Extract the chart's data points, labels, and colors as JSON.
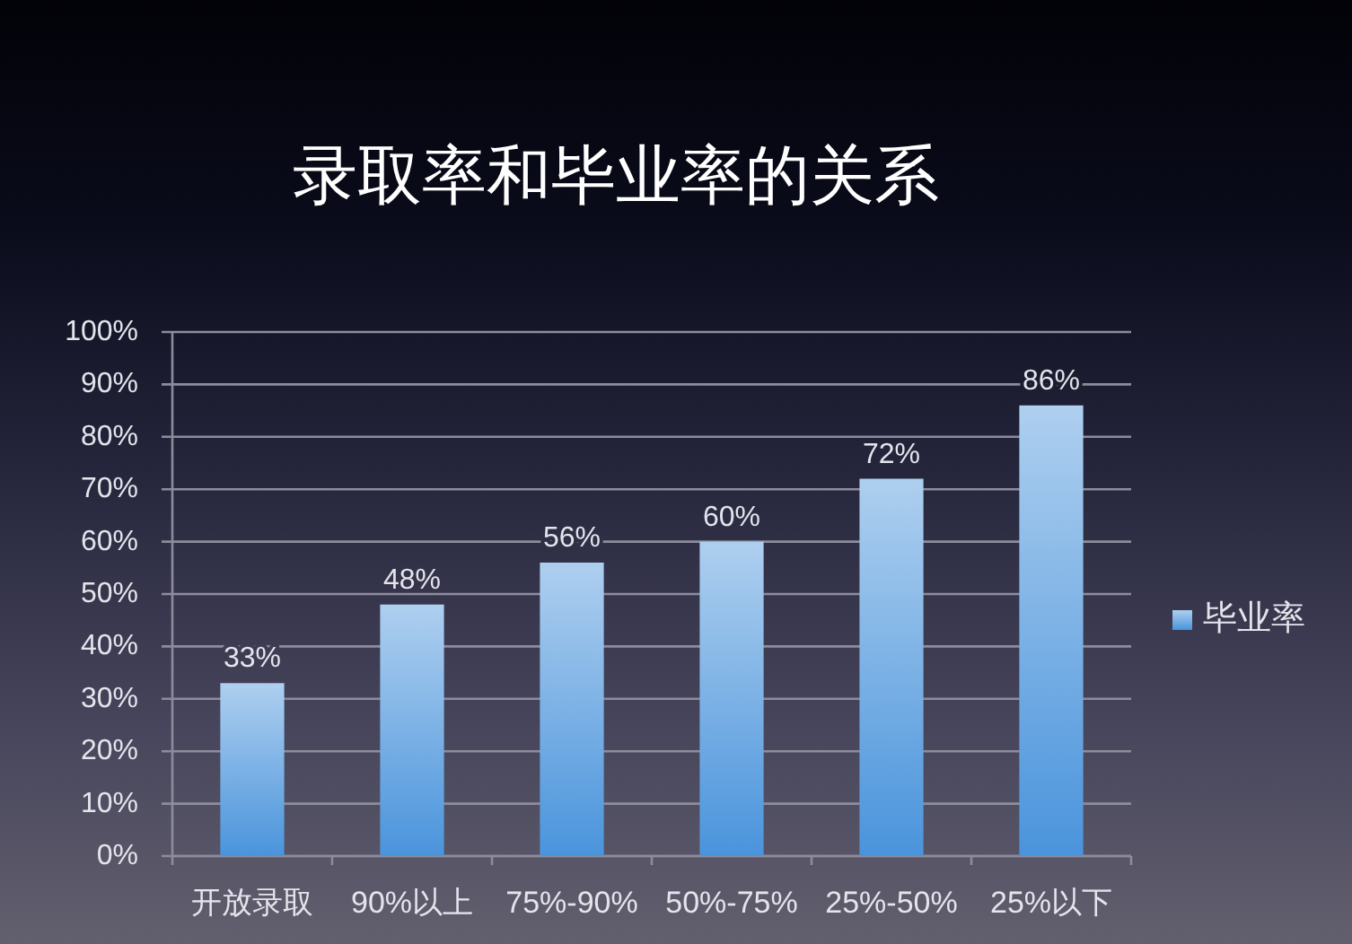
{
  "chart_data": {
    "type": "bar",
    "title": "录取率和毕业率的关系",
    "categories": [
      "开放录取",
      "90%以上",
      "75%-90%",
      "50%-75%",
      "25%-50%",
      "25%以下"
    ],
    "series": [
      {
        "name": "毕业率",
        "color": "#4a94dc",
        "values": [
          33,
          48,
          56,
          60,
          72,
          86
        ],
        "value_labels": [
          "33%",
          "48%",
          "56%",
          "60%",
          "72%",
          "86%"
        ]
      }
    ],
    "ylim": [
      0,
      100
    ],
    "yticks": [
      {
        "value": 0,
        "label": "0%"
      },
      {
        "value": 10,
        "label": "10%"
      },
      {
        "value": 20,
        "label": "20%"
      },
      {
        "value": 30,
        "label": "30%"
      },
      {
        "value": 40,
        "label": "40%"
      },
      {
        "value": 50,
        "label": "50%"
      },
      {
        "value": 60,
        "label": "60%"
      },
      {
        "value": 70,
        "label": "70%"
      },
      {
        "value": 80,
        "label": "80%"
      },
      {
        "value": 90,
        "label": "90%"
      },
      {
        "value": 100,
        "label": "100%"
      }
    ],
    "grid": "y",
    "legend": "right"
  }
}
